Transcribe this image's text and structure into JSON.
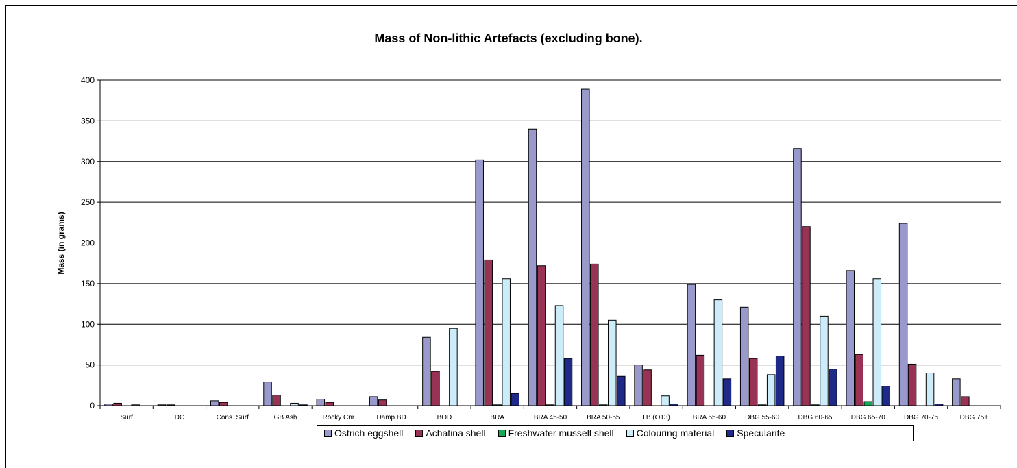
{
  "chart_data": {
    "type": "bar",
    "title": "Mass of Non-lithic Artefacts (excluding bone).",
    "xlabel": "",
    "ylabel": "Mass (in grams)",
    "ylim": [
      0,
      400
    ],
    "yticks": [
      0,
      50,
      100,
      150,
      200,
      250,
      300,
      350,
      400
    ],
    "grid": true,
    "legend_position": "bottom",
    "categories": [
      "Surf",
      "DC",
      "Cons. Surf",
      "GB Ash",
      "Rocky Cnr",
      "Damp BD",
      "BOD",
      "BRA",
      "BRA 45-50",
      "BRA 50-55",
      "LB (O13)",
      "BRA 55-60",
      "DBG 55-60",
      "DBG 60-65",
      "DBG 65-70",
      "DBG 70-75",
      "DBG 75+"
    ],
    "series": [
      {
        "name": "Ostrich eggshell",
        "color": "#9999cc",
        "values": [
          2,
          1,
          6,
          29,
          8,
          11,
          84,
          302,
          340,
          389,
          50,
          149,
          121,
          316,
          166,
          224,
          33
        ]
      },
      {
        "name": "Achatina shell",
        "color": "#993355",
        "values": [
          3,
          1,
          4,
          13,
          4,
          7,
          42,
          179,
          172,
          174,
          44,
          62,
          58,
          220,
          63,
          51,
          11
        ]
      },
      {
        "name": "Freshwater mussell shell",
        "color": "#11aa55",
        "values": [
          0,
          0,
          0,
          0,
          0,
          0,
          0,
          1,
          1,
          1,
          0,
          0,
          1,
          1,
          5,
          0,
          0
        ]
      },
      {
        "name": "Colouring material",
        "color": "#ccecfa",
        "values": [
          1,
          0,
          0,
          3,
          0,
          0,
          95,
          156,
          123,
          105,
          12,
          130,
          38,
          110,
          156,
          40,
          0
        ]
      },
      {
        "name": "Specularite",
        "color": "#1f2a88",
        "values": [
          0,
          0,
          0,
          1,
          0,
          0,
          0,
          15,
          58,
          36,
          2,
          33,
          61,
          45,
          24,
          2,
          0
        ]
      }
    ]
  }
}
